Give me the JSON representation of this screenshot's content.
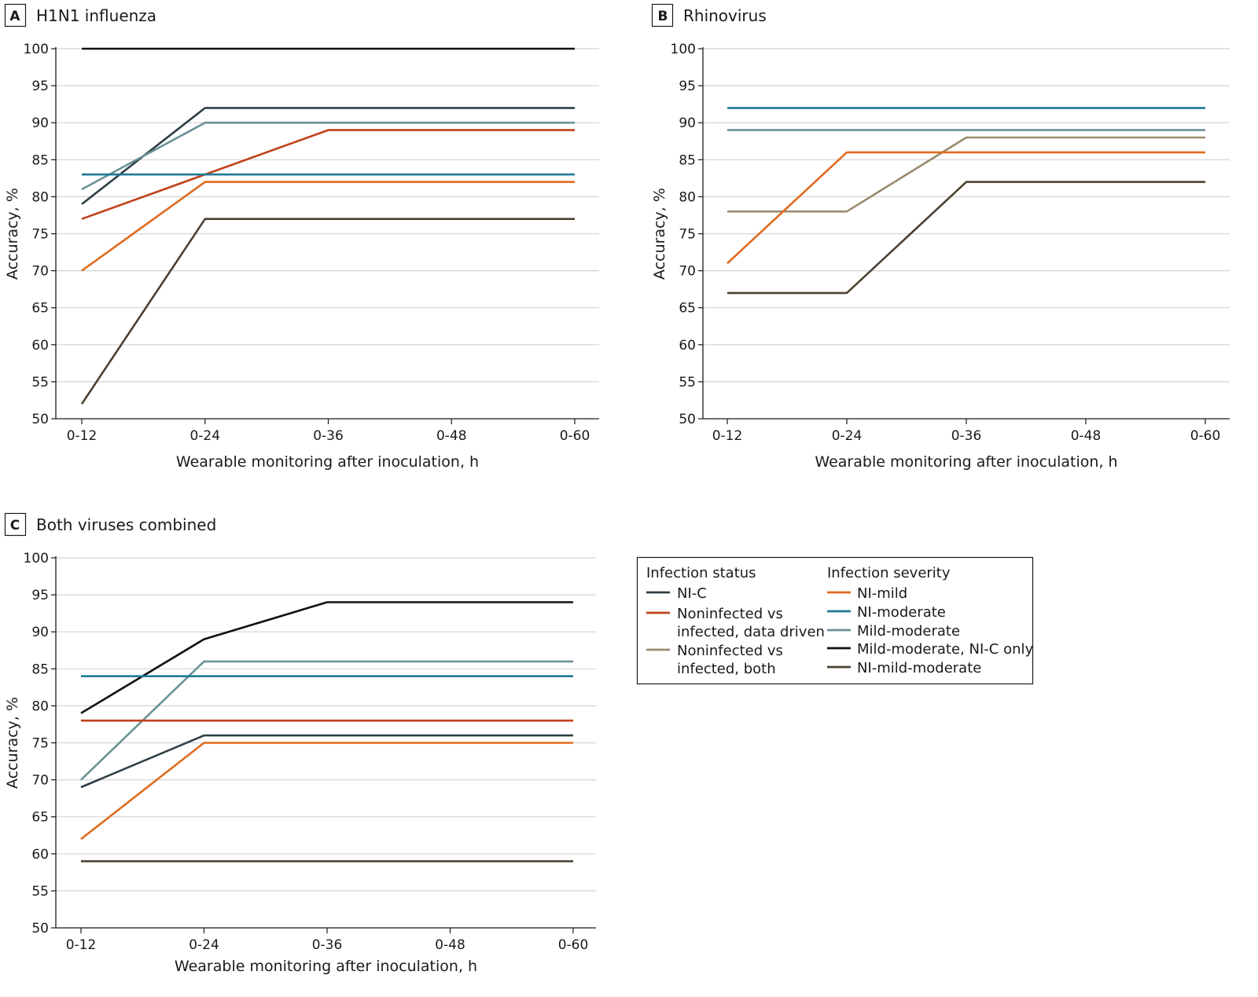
{
  "legend": {
    "status_title": "Infection status",
    "severity_title": "Infection severity",
    "status_items": [
      {
        "lines": [
          "NI-C"
        ],
        "color": "#2e3f45"
      },
      {
        "lines": [
          "Noninfected vs",
          "infected, data driven"
        ],
        "color": "#c1411a"
      },
      {
        "lines": [
          "Noninfected vs",
          "infected, both"
        ],
        "color": "#9a8b6e"
      }
    ],
    "severity_items": [
      {
        "lines": [
          "NI-mild"
        ],
        "color": "#e06a1e"
      },
      {
        "lines": [
          "NI-moderate"
        ],
        "color": "#1d7a96"
      },
      {
        "lines": [
          "Mild-moderate"
        ],
        "color": "#6a9296"
      },
      {
        "lines": [
          "Mild-moderate, NI-C only"
        ],
        "color": "#111111"
      },
      {
        "lines": [
          "NI-mild-moderate"
        ],
        "color": "#4d4031"
      }
    ]
  },
  "chart_data": [
    {
      "type": "line",
      "letter": "A",
      "title": "H1N1 influenza",
      "xlabel": "Wearable monitoring after inoculation, h",
      "ylabel": "Accuracy, %",
      "categories": [
        "0-12",
        "0-24",
        "0-36",
        "0-48",
        "0-60"
      ],
      "ylim": [
        50,
        100
      ],
      "yticks": [
        50,
        55,
        60,
        65,
        70,
        75,
        80,
        85,
        90,
        95,
        100
      ],
      "grid": true,
      "series": [
        {
          "name": "Mild-moderate, NI-C only",
          "color": "#111111",
          "values": [
            100,
            100,
            100,
            100,
            100
          ]
        },
        {
          "name": "NI-C",
          "color": "#2e3f45",
          "values": [
            79,
            92,
            92,
            92,
            92
          ]
        },
        {
          "name": "Mild-moderate",
          "color": "#6a9296",
          "values": [
            81,
            90,
            90,
            90,
            90
          ]
        },
        {
          "name": "Noninfected vs infected, data driven",
          "color": "#c1411a",
          "values": [
            77,
            83,
            89,
            89,
            89
          ]
        },
        {
          "name": "NI-moderate",
          "color": "#1d7a96",
          "values": [
            83,
            83,
            83,
            83,
            83
          ]
        },
        {
          "name": "NI-mild",
          "color": "#e06a1e",
          "values": [
            70,
            82,
            82,
            82,
            82
          ]
        },
        {
          "name": "NI-mild-moderate",
          "color": "#4d4031",
          "values": [
            52,
            77,
            77,
            77,
            77
          ]
        }
      ]
    },
    {
      "type": "line",
      "letter": "B",
      "title": "Rhinovirus",
      "xlabel": "Wearable monitoring after inoculation, h",
      "ylabel": "Accuracy, %",
      "categories": [
        "0-12",
        "0-24",
        "0-36",
        "0-48",
        "0-60"
      ],
      "ylim": [
        50,
        100
      ],
      "yticks": [
        50,
        55,
        60,
        65,
        70,
        75,
        80,
        85,
        90,
        95,
        100
      ],
      "grid": true,
      "series": [
        {
          "name": "NI-moderate",
          "color": "#1d7a96",
          "values": [
            92,
            92,
            92,
            92,
            92
          ]
        },
        {
          "name": "Mild-moderate",
          "color": "#6a9296",
          "values": [
            89,
            89,
            89,
            89,
            89
          ]
        },
        {
          "name": "Noninfected vs infected, both",
          "color": "#9a8b6e",
          "values": [
            78,
            78,
            88,
            88,
            88
          ]
        },
        {
          "name": "NI-mild",
          "color": "#e06a1e",
          "values": [
            71,
            86,
            86,
            86,
            86
          ]
        },
        {
          "name": "NI-mild-moderate",
          "color": "#4d4031",
          "values": [
            67,
            67,
            82,
            82,
            82
          ]
        }
      ]
    },
    {
      "type": "line",
      "letter": "C",
      "title": "Both viruses combined",
      "xlabel": "Wearable monitoring after inoculation, h",
      "ylabel": "Accuracy, %",
      "categories": [
        "0-12",
        "0-24",
        "0-36",
        "0-48",
        "0-60"
      ],
      "ylim": [
        50,
        100
      ],
      "yticks": [
        50,
        55,
        60,
        65,
        70,
        75,
        80,
        85,
        90,
        95,
        100
      ],
      "grid": true,
      "series": [
        {
          "name": "Mild-moderate, NI-C only",
          "color": "#111111",
          "values": [
            79,
            89,
            94,
            94,
            94
          ]
        },
        {
          "name": "Mild-moderate",
          "color": "#6a9296",
          "values": [
            70,
            86,
            86,
            86,
            86
          ]
        },
        {
          "name": "NI-moderate",
          "color": "#1d7a96",
          "values": [
            84,
            84,
            84,
            84,
            84
          ]
        },
        {
          "name": "Noninfected vs infected, data driven",
          "color": "#c1411a",
          "values": [
            78,
            78,
            78,
            78,
            78
          ]
        },
        {
          "name": "NI-C",
          "color": "#2e3f45",
          "values": [
            69,
            76,
            76,
            76,
            76
          ]
        },
        {
          "name": "NI-mild",
          "color": "#e06a1e",
          "values": [
            62,
            75,
            75,
            75,
            75
          ]
        },
        {
          "name": "NI-mild-moderate",
          "color": "#4d4031",
          "values": [
            59,
            59,
            59,
            59,
            59
          ]
        }
      ]
    }
  ]
}
